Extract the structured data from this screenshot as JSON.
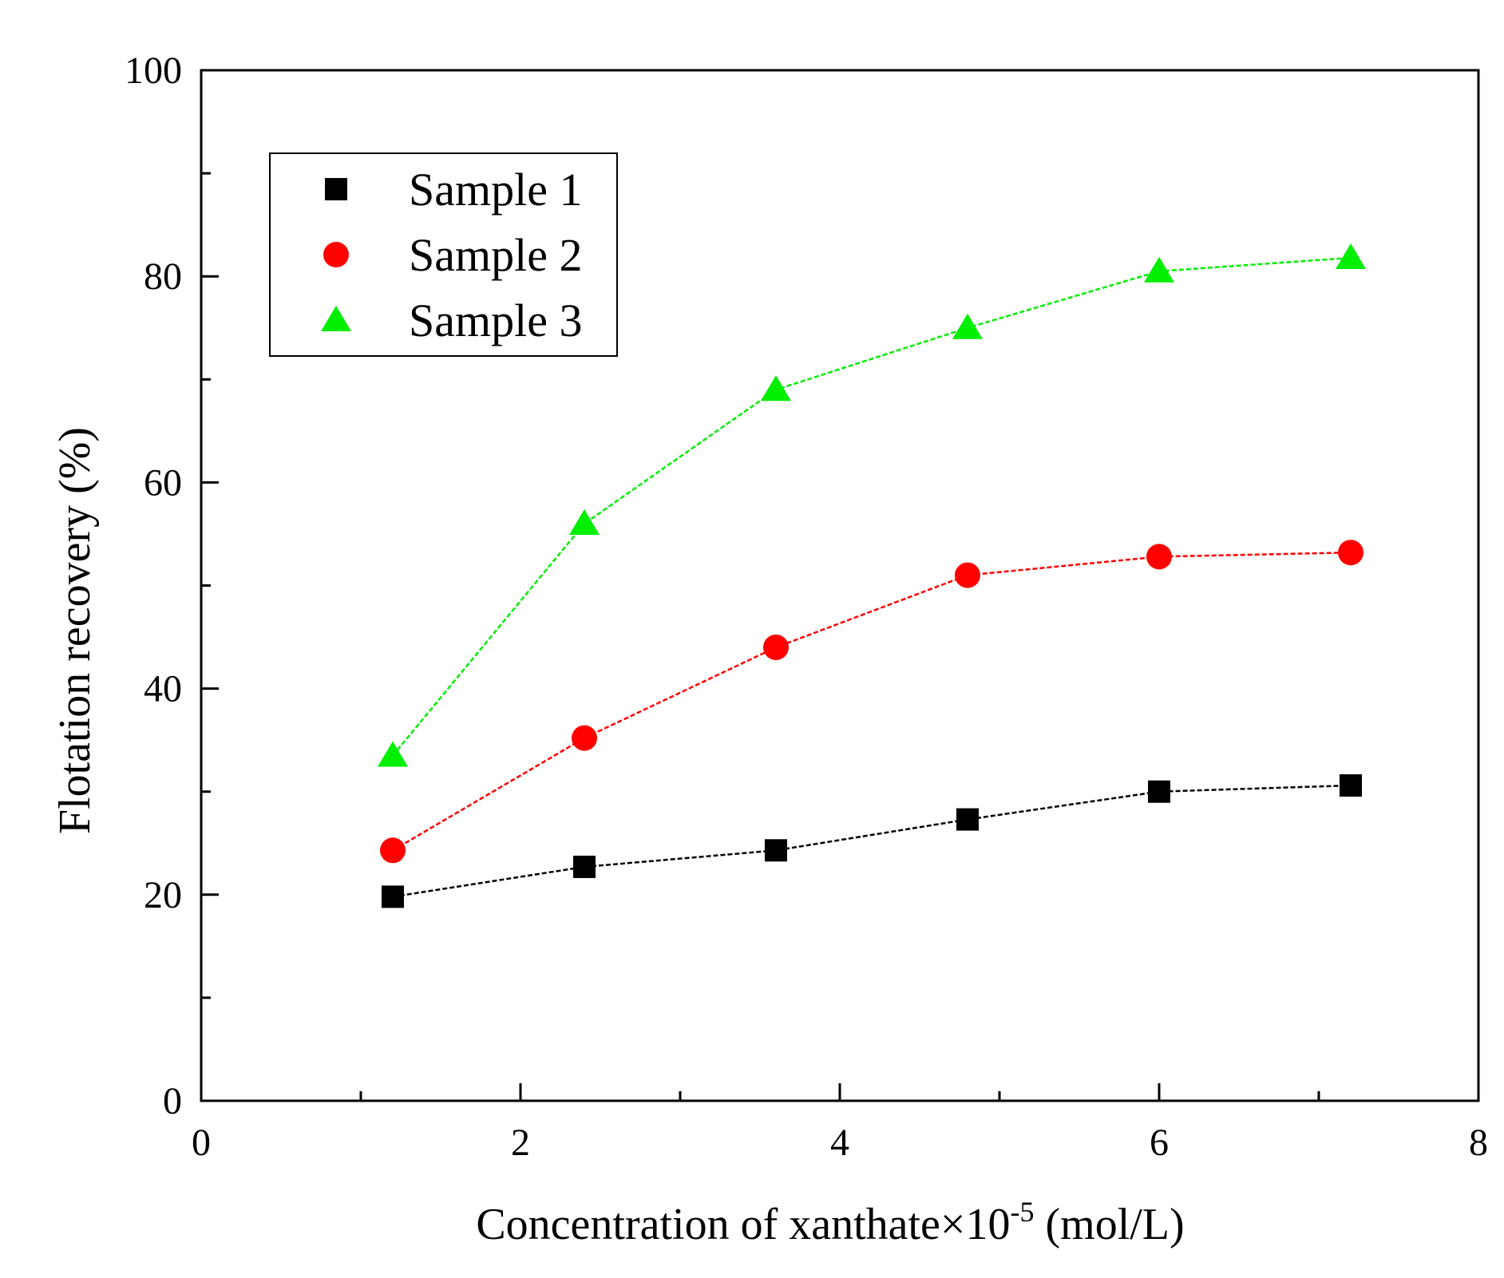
{
  "chart_data": {
    "type": "line",
    "title": "",
    "xlabel_main": "Concentration of xanthate×10",
    "xlabel_sup": "-5",
    "xlabel_tail": " (mol/L)",
    "ylabel": "Flotation recovery (%)",
    "xlim": [
      0,
      8
    ],
    "ylim": [
      0,
      100
    ],
    "x_ticks": [
      "0",
      "2",
      "4",
      "6",
      "8"
    ],
    "y_ticks": [
      "0",
      "20",
      "40",
      "60",
      "80",
      "100"
    ],
    "x_tick_values": [
      0,
      2,
      4,
      6,
      8
    ],
    "y_tick_values": [
      0,
      20,
      40,
      60,
      80,
      100
    ],
    "x_minor_tick_values": [
      1,
      3,
      5,
      7
    ],
    "y_minor_tick_values": [
      10,
      30,
      50,
      70,
      90
    ],
    "grid": false,
    "legend_position": "top-left",
    "x": [
      1.2,
      2.4,
      3.6,
      4.8,
      6.0,
      7.2
    ],
    "series": [
      {
        "name": "Sample 1",
        "marker": "square",
        "color": "#000000",
        "values": [
          19.8,
          22.7,
          24.3,
          27.3,
          30.0,
          30.6
        ]
      },
      {
        "name": "Sample 2",
        "marker": "circle",
        "color": "#ff0000",
        "values": [
          24.3,
          35.2,
          44.0,
          51.0,
          52.8,
          53.2
        ]
      },
      {
        "name": "Sample 3",
        "marker": "triangle",
        "color": "#00ee00",
        "values": [
          33.5,
          56.0,
          69.0,
          75.0,
          80.5,
          81.8
        ]
      }
    ]
  }
}
